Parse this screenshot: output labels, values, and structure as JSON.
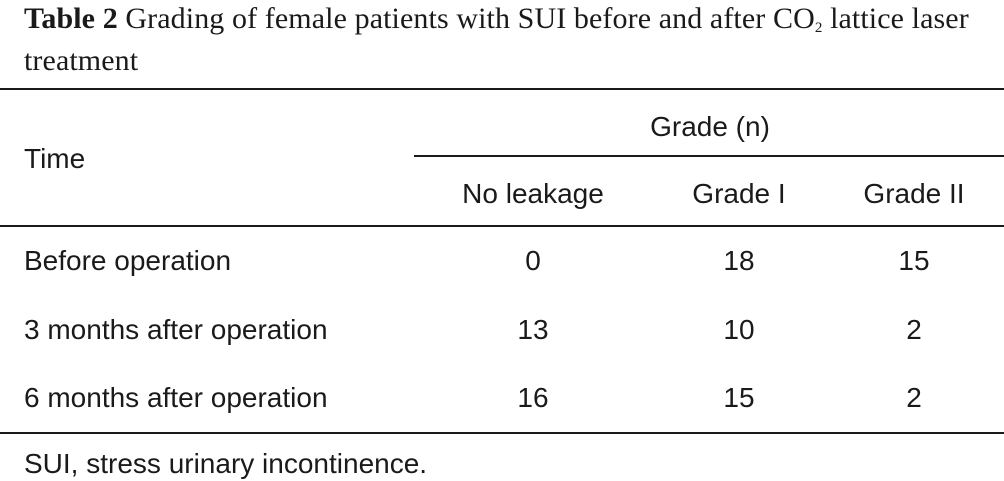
{
  "caption": {
    "label": "Table 2",
    "text_before_sub": "Grading of female patients with SUI before and after CO",
    "subscript": "2",
    "text_after_sub": "lattice laser treatment"
  },
  "table": {
    "row_header": "Time",
    "group_header": "Grade (n)",
    "columns": [
      "No leakage",
      "Grade I",
      "Grade II"
    ],
    "rows": [
      {
        "time": "Before operation",
        "values": [
          "0",
          "18",
          "15"
        ]
      },
      {
        "time": "3 months after operation",
        "values": [
          "13",
          "10",
          "2"
        ]
      },
      {
        "time": "6 months after operation",
        "values": [
          "16",
          "15",
          "2"
        ]
      }
    ]
  },
  "footnote": "SUI, stress urinary incontinence."
}
